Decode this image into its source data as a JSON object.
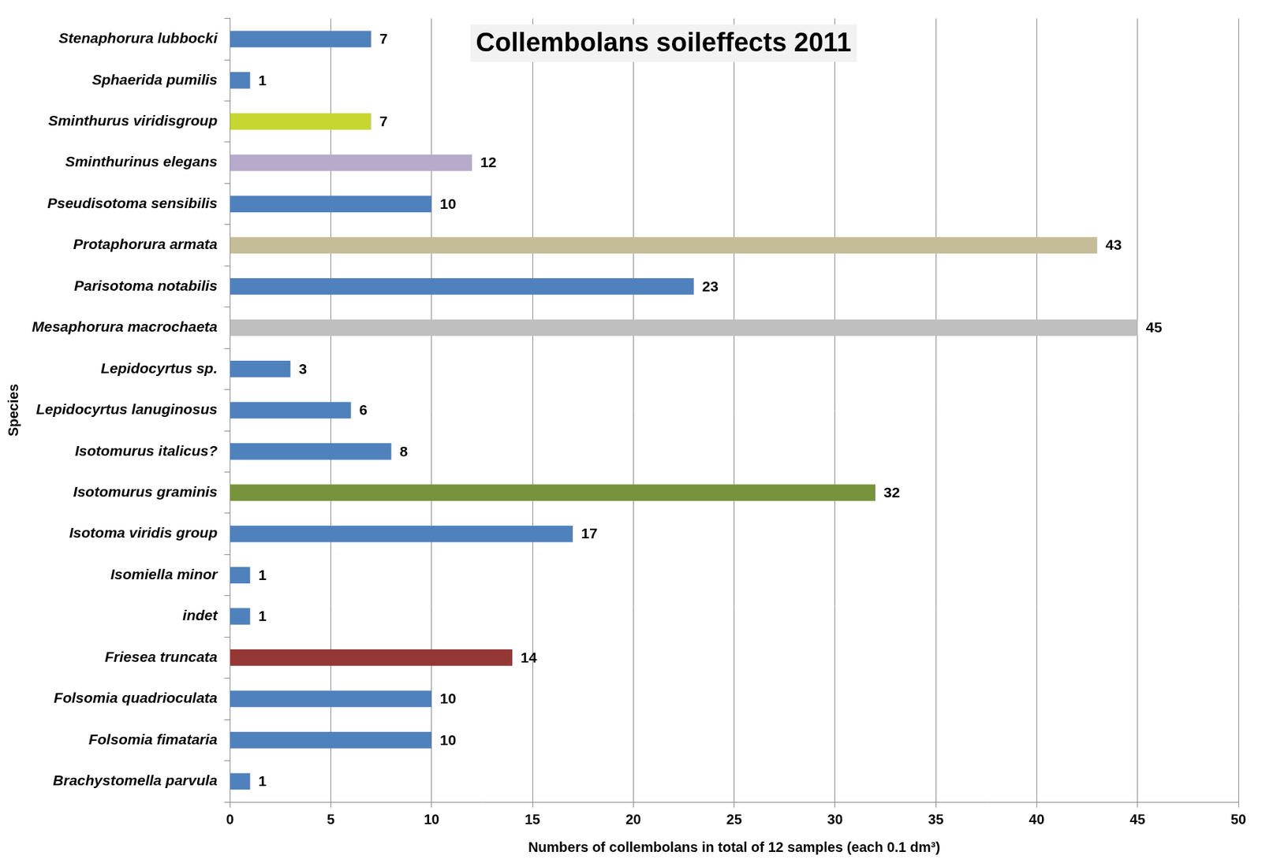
{
  "chart_data": {
    "type": "bar",
    "orientation": "horizontal",
    "title": "Collembolans soileffects 2011",
    "x_label": "Numbers of collembolans in total of 12 samples (each 0.1 dm³)",
    "y_label": "Species",
    "categories": [
      "Stenaphorura lubbocki",
      "Sphaerida pumilis",
      "Sminthurus viridisgroup",
      "Sminthurinus elegans",
      "Pseudisotoma sensibilis",
      "Protaphorura armata",
      "Parisotoma notabilis",
      "Mesaphorura macrochaeta",
      "Lepidocyrtus sp.",
      "Lepidocyrtus lanuginosus",
      "Isotomurus italicus?",
      "Isotomurus graminis",
      "Isotoma viridis group",
      "Isomiella minor",
      "indet",
      "Friesea truncata",
      "Folsomia quadrioculata",
      "Folsomia fimataria",
      "Brachystomella parvula"
    ],
    "values": [
      7,
      1,
      7,
      12,
      10,
      43,
      23,
      45,
      3,
      6,
      8,
      32,
      17,
      1,
      1,
      14,
      10,
      10,
      1
    ],
    "colors": [
      "#4f81bd",
      "#4f81bd",
      "#c6d631",
      "#b7aacb",
      "#4f81bd",
      "#c4bd97",
      "#4f81bd",
      "#bfbfbf",
      "#4f81bd",
      "#4f81bd",
      "#4f81bd",
      "#77933c",
      "#4f81bd",
      "#4f81bd",
      "#4f81bd",
      "#953735",
      "#4f81bd",
      "#4f81bd",
      "#4f81bd"
    ],
    "xlim": [
      0,
      50
    ],
    "xticks": [
      0,
      5,
      10,
      15,
      20,
      25,
      30,
      35,
      40,
      45,
      50
    ],
    "grid": true,
    "data_labels": true
  }
}
